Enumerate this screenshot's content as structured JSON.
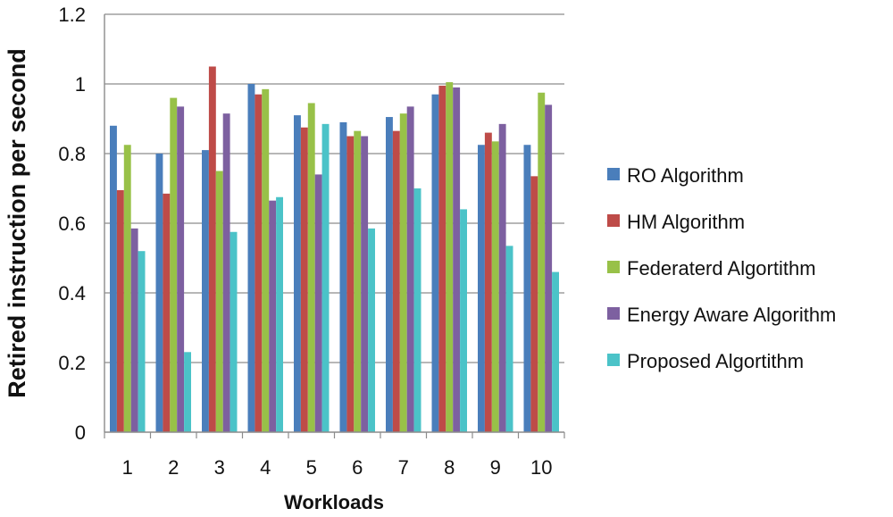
{
  "chart_data": {
    "type": "bar",
    "xlabel": "Workloads",
    "ylabel": "Retired instruction per second",
    "ylim": [
      0,
      1.2
    ],
    "yticks": [
      "0",
      "0.2",
      "0.4",
      "0.6",
      "0.8",
      "1",
      "1.2"
    ],
    "ytick_values": [
      0,
      0.2,
      0.4,
      0.6,
      0.8,
      1.0,
      1.2
    ],
    "grid": true,
    "legend_position": "right",
    "categories": [
      "1",
      "2",
      "3",
      "4",
      "5",
      "6",
      "7",
      "8",
      "9",
      "10"
    ],
    "series": [
      {
        "name": "RO Algorithm",
        "color": "#4A7EBB",
        "values": [
          0.88,
          0.8,
          0.81,
          1.0,
          0.91,
          0.89,
          0.905,
          0.97,
          0.825,
          0.825
        ]
      },
      {
        "name": "HM Algorithm",
        "color": "#BE4B48",
        "values": [
          0.695,
          0.685,
          1.05,
          0.97,
          0.875,
          0.85,
          0.865,
          0.995,
          0.86,
          0.735
        ]
      },
      {
        "name": "Federaterd Algortithm",
        "color": "#98C148",
        "values": [
          0.825,
          0.96,
          0.75,
          0.985,
          0.945,
          0.865,
          0.915,
          1.005,
          0.835,
          0.975
        ]
      },
      {
        "name": "Energy Aware Algorithm",
        "color": "#7D60A0",
        "values": [
          0.585,
          0.935,
          0.915,
          0.665,
          0.74,
          0.85,
          0.935,
          0.99,
          0.885,
          0.94
        ]
      },
      {
        "name": "Proposed Algortithm",
        "color": "#4BC3C8",
        "values": [
          0.52,
          0.23,
          0.575,
          0.675,
          0.885,
          0.585,
          0.7,
          0.64,
          0.535,
          0.46
        ]
      }
    ]
  }
}
